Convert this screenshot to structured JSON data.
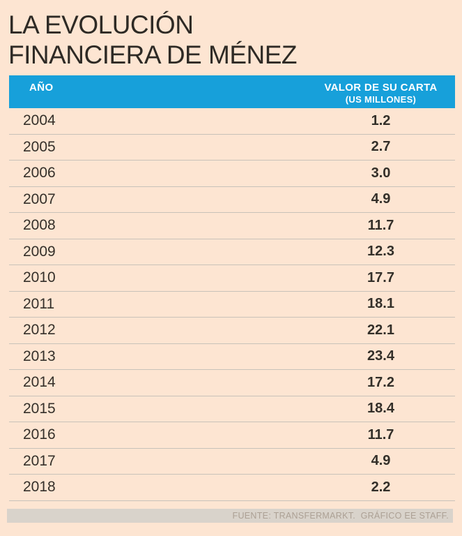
{
  "title": {
    "line1": "LA EVOLUCIÓN",
    "line2": "FINANCIERA DE MÉNEZ"
  },
  "table": {
    "headers": {
      "year": "AÑO",
      "value_line1": "VALOR DE SU CARTA",
      "value_line2": "(US MILLONES)"
    },
    "rows": [
      {
        "year": "2004",
        "value": "1.2"
      },
      {
        "year": "2005",
        "value": "2.7"
      },
      {
        "year": "2006",
        "value": "3.0"
      },
      {
        "year": "2007",
        "value": "4.9"
      },
      {
        "year": "2008",
        "value": "11.7"
      },
      {
        "year": "2009",
        "value": "12.3"
      },
      {
        "year": "2010",
        "value": "17.7"
      },
      {
        "year": "2011",
        "value": "18.1"
      },
      {
        "year": "2012",
        "value": "22.1"
      },
      {
        "year": "2013",
        "value": "23.4"
      },
      {
        "year": "2014",
        "value": "17.2"
      },
      {
        "year": "2015",
        "value": "18.4"
      },
      {
        "year": "2016",
        "value": "11.7"
      },
      {
        "year": "2017",
        "value": "4.9"
      },
      {
        "year": "2018",
        "value": "2.2"
      }
    ]
  },
  "footer": {
    "source": "FUENTE: TRANSFERMARKT.  GRÁFICO EE STAFF."
  },
  "colors": {
    "background": "#FDE5D2",
    "header_bar": "#17A0DA",
    "header_text": "#FFFFFF",
    "body_text": "#332F29",
    "divider": "#C8C2B9",
    "footer_bar": "#D9D3CB",
    "footer_text": "#ACA094"
  },
  "chart_data": {
    "type": "table",
    "title": "LA EVOLUCIÓN FINANCIERA DE MÉNEZ",
    "columns": [
      "AÑO",
      "VALOR DE SU CARTA (US MILLONES)"
    ],
    "categories": [
      "2004",
      "2005",
      "2006",
      "2007",
      "2008",
      "2009",
      "2010",
      "2011",
      "2012",
      "2013",
      "2014",
      "2015",
      "2016",
      "2017",
      "2018"
    ],
    "values": [
      1.2,
      2.7,
      3.0,
      4.9,
      11.7,
      12.3,
      17.7,
      18.1,
      22.1,
      23.4,
      17.2,
      18.4,
      11.7,
      4.9,
      2.2
    ],
    "source": "FUENTE: TRANSFERMARKT.  GRÁFICO EE STAFF."
  }
}
